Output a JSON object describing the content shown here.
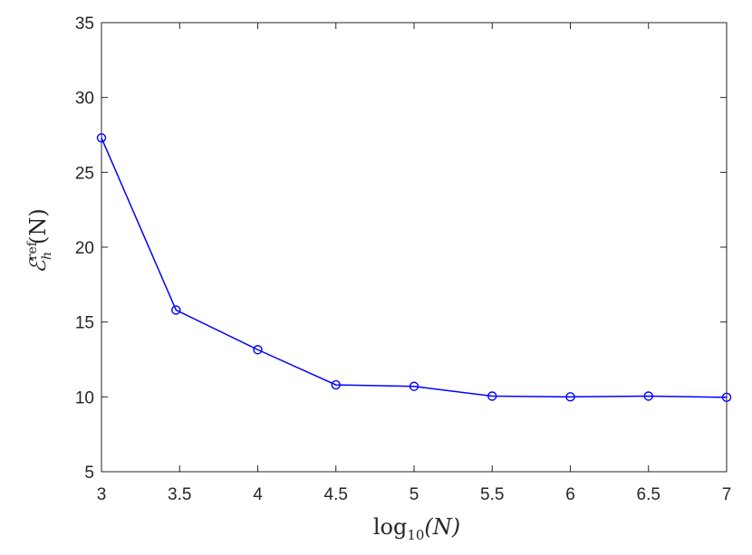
{
  "chart_data": {
    "type": "line",
    "x": [
      3,
      3.477,
      4,
      4.5,
      5,
      5.5,
      6,
      6.5,
      7
    ],
    "series": [
      {
        "values": [
          27.3,
          15.8,
          13.15,
          10.8,
          10.7,
          10.05,
          10.0,
          10.05,
          9.97
        ],
        "color": "#0000ff",
        "marker": "circle"
      }
    ],
    "xlabel": {
      "base": "log",
      "sub": "10",
      "arg": "(N)"
    },
    "ylabel": {
      "base": "ℰ",
      "sup": "ref",
      "sub": "h",
      "arg": "(N)"
    },
    "xlim": [
      3,
      7
    ],
    "ylim": [
      5,
      35
    ],
    "xticks": [
      "3",
      "3.5",
      "4",
      "4.5",
      "5",
      "5.5",
      "6",
      "6.5",
      "7"
    ],
    "yticks": [
      "5",
      "10",
      "15",
      "20",
      "25",
      "30",
      "35"
    ],
    "grid": false,
    "box": true
  }
}
